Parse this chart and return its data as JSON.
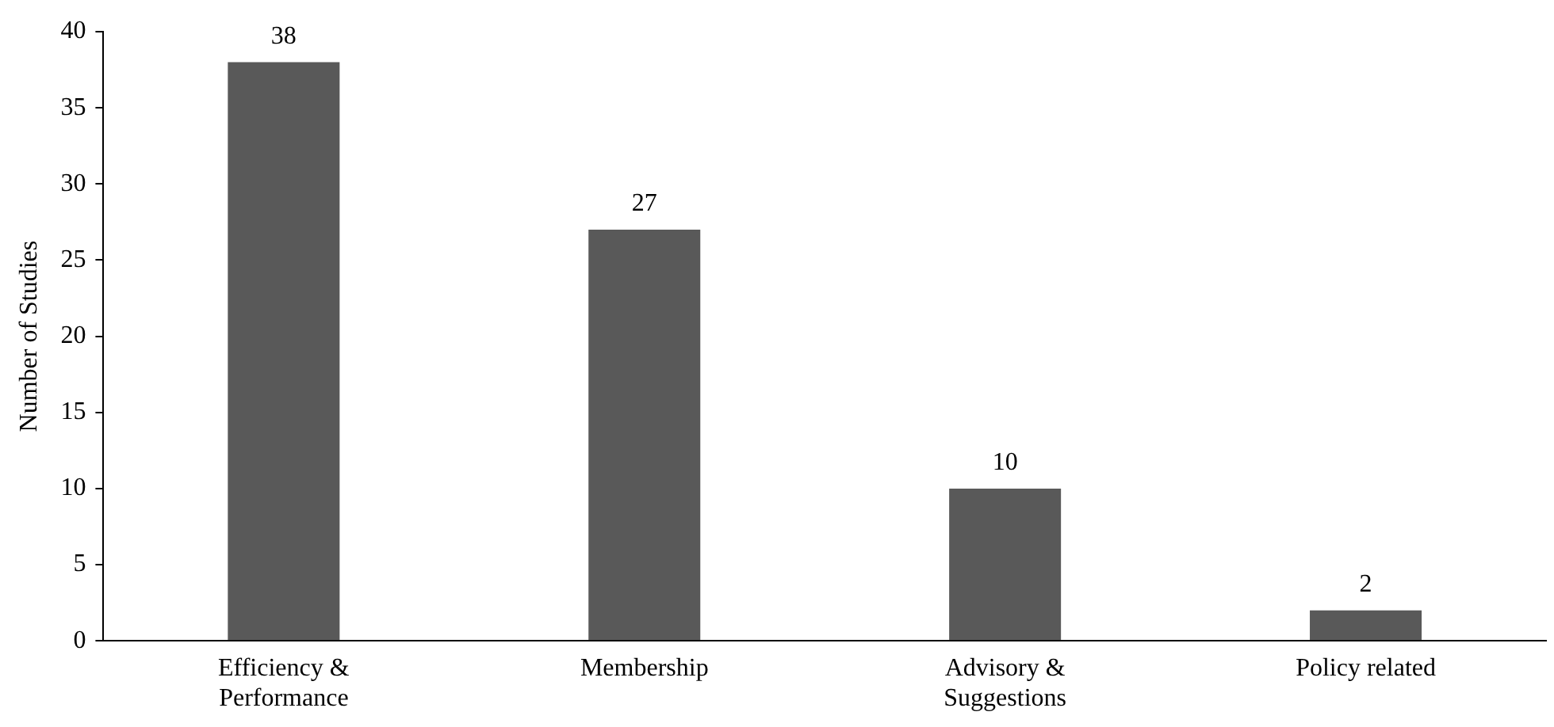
{
  "chart_data": {
    "type": "bar",
    "ylabel": "Number of Studies",
    "categories": [
      "Efficiency & Performance",
      "Membership",
      "Advisory & Suggestions",
      "Policy related"
    ],
    "values": [
      38,
      27,
      10,
      2
    ],
    "color": "#595959",
    "ylim": [
      0,
      40
    ],
    "yticks": [
      0,
      5,
      10,
      15,
      20,
      25,
      30,
      35,
      40
    ],
    "grid": false,
    "data_labels": true,
    "legend": false
  }
}
